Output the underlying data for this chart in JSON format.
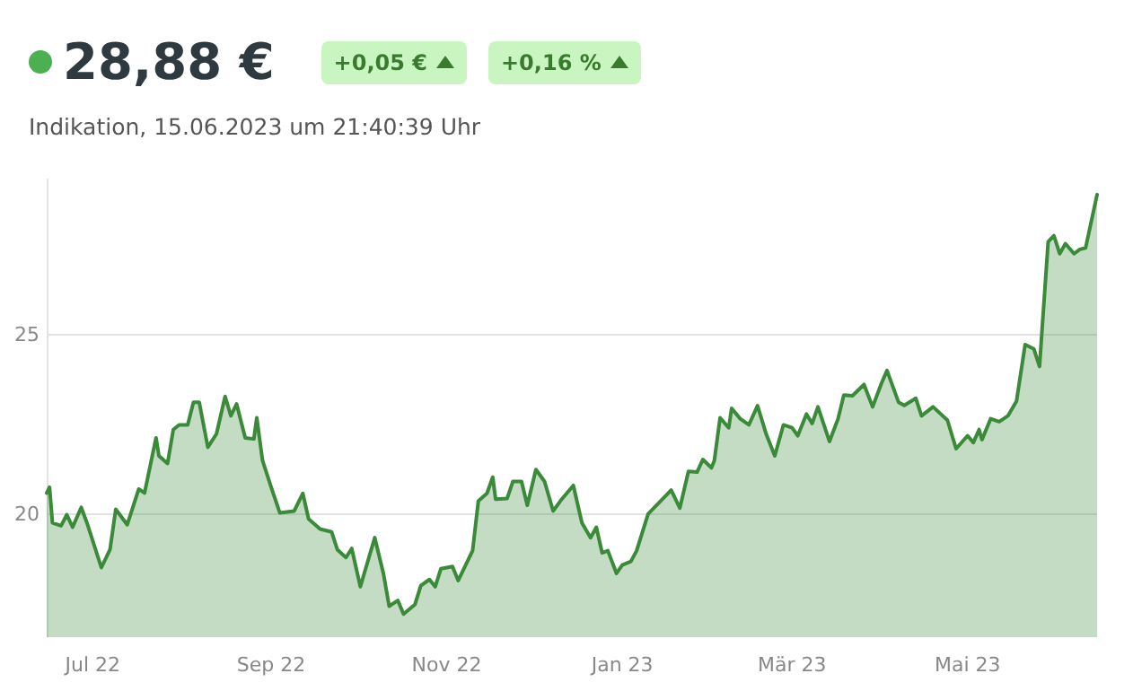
{
  "chart_data": {
    "type": "area",
    "title": "28,88 €",
    "subtitle": "Indikation, 15.06.2023 um 21:40:39 Uhr",
    "annotations": [
      "+0,05 €",
      "+0,16 %"
    ],
    "x": [
      "2022-06-15",
      "2022-06-16",
      "2022-06-17",
      "2022-06-20",
      "2022-06-22",
      "2022-06-24",
      "2022-06-27",
      "2022-06-29",
      "2022-07-04",
      "2022-07-07",
      "2022-07-09",
      "2022-07-13",
      "2022-07-17",
      "2022-07-19",
      "2022-07-23",
      "2022-07-24",
      "2022-07-27",
      "2022-07-29",
      "2022-07-31",
      "2022-08-03",
      "2022-08-05",
      "2022-08-07",
      "2022-08-10",
      "2022-08-13",
      "2022-08-16",
      "2022-08-18",
      "2022-08-20",
      "2022-08-23",
      "2022-08-26",
      "2022-08-27",
      "2022-08-29",
      "2022-09-01",
      "2022-09-04",
      "2022-09-09",
      "2022-09-12",
      "2022-09-14",
      "2022-09-18",
      "2022-09-22",
      "2022-09-24",
      "2022-09-27",
      "2022-09-29",
      "2022-10-02",
      "2022-10-07",
      "2022-10-10",
      "2022-10-12",
      "2022-10-15",
      "2022-10-17",
      "2022-10-21",
      "2022-10-23",
      "2022-10-26",
      "2022-10-28",
      "2022-10-30",
      "2022-11-03",
      "2022-11-05",
      "2022-11-10",
      "2022-11-12",
      "2022-11-15",
      "2022-11-17",
      "2022-11-18",
      "2022-11-22",
      "2022-11-24",
      "2022-11-27",
      "2022-11-29",
      "2022-12-02",
      "2022-12-05",
      "2022-12-08",
      "2022-12-11",
      "2022-12-15",
      "2022-12-18",
      "2022-12-21",
      "2022-12-23",
      "2022-12-25",
      "2022-12-27",
      "2022-12-30",
      "2023-01-01",
      "2023-01-04",
      "2023-01-06",
      "2023-01-10",
      "2023-01-15",
      "2023-01-18",
      "2023-01-21",
      "2023-01-24",
      "2023-01-27",
      "2023-01-29",
      "2023-02-01",
      "2023-02-02",
      "2023-02-04",
      "2023-02-07",
      "2023-02-08",
      "2023-02-11",
      "2023-02-14",
      "2023-02-17",
      "2023-02-20",
      "2023-02-23",
      "2023-02-26",
      "2023-03-01",
      "2023-03-03",
      "2023-03-06",
      "2023-03-08",
      "2023-03-10",
      "2023-03-14",
      "2023-03-17",
      "2023-03-19",
      "2023-03-22",
      "2023-03-26",
      "2023-03-29",
      "2023-04-01",
      "2023-04-03",
      "2023-04-07",
      "2023-04-09",
      "2023-04-13",
      "2023-04-15",
      "2023-04-19",
      "2023-04-24",
      "2023-04-27",
      "2023-05-01",
      "2023-05-03",
      "2023-05-05",
      "2023-05-06",
      "2023-05-09",
      "2023-05-12",
      "2023-05-15",
      "2023-05-18",
      "2023-05-21",
      "2023-05-24",
      "2023-05-26",
      "2023-05-29",
      "2023-05-31",
      "2023-06-02",
      "2023-06-04",
      "2023-06-07",
      "2023-06-09",
      "2023-06-11",
      "2023-06-15"
    ],
    "series": [
      {
        "color": "#3a8a3a",
        "values": [
          20.6,
          20.76,
          19.77,
          19.69,
          20.0,
          19.65,
          20.2,
          19.77,
          18.53,
          19.03,
          20.15,
          19.72,
          20.71,
          20.6,
          22.13,
          21.63,
          21.42,
          22.36,
          22.49,
          22.49,
          23.12,
          23.12,
          21.87,
          22.24,
          23.28,
          22.74,
          23.07,
          22.13,
          22.1,
          22.69,
          21.5,
          20.76,
          20.05,
          20.1,
          20.59,
          19.88,
          19.6,
          19.52,
          19.03,
          18.81,
          19.06,
          18.0,
          19.36,
          18.37,
          17.46,
          17.62,
          17.24,
          17.51,
          18.03,
          18.2,
          18.0,
          18.5,
          18.56,
          18.17,
          19.0,
          20.38,
          20.59,
          21.04,
          20.43,
          20.45,
          20.92,
          20.92,
          20.26,
          21.25,
          20.92,
          20.1,
          20.43,
          20.81,
          19.77,
          19.36,
          19.65,
          18.94,
          19.0,
          18.37,
          18.6,
          18.7,
          19.0,
          20.02,
          20.43,
          20.68,
          20.18,
          21.2,
          21.18,
          21.53,
          21.3,
          21.5,
          22.69,
          22.41,
          22.95,
          22.66,
          22.49,
          23.02,
          22.24,
          21.63,
          22.49,
          22.41,
          22.19,
          22.79,
          22.53,
          22.99,
          22.03,
          22.66,
          23.32,
          23.3,
          23.61,
          22.99,
          23.63,
          24.0,
          23.12,
          23.03,
          23.23,
          22.74,
          22.99,
          22.62,
          21.83,
          22.19,
          22.0,
          22.36,
          22.08,
          22.66,
          22.58,
          22.74,
          23.15,
          24.72,
          24.6,
          24.11,
          27.57,
          27.74,
          27.24,
          27.52,
          27.24,
          27.36,
          27.4,
          28.88
        ]
      }
    ],
    "xlim": [
      "2022-06-15",
      "2023-06-15"
    ],
    "xticks": [
      {
        "value": "2022-07-01",
        "label": "Jul 22"
      },
      {
        "value": "2022-09-01",
        "label": "Sep 22"
      },
      {
        "value": "2022-11-01",
        "label": "Nov 22"
      },
      {
        "value": "2023-01-01",
        "label": "Jan 23"
      },
      {
        "value": "2023-03-01",
        "label": "Mär 23"
      },
      {
        "value": "2023-05-01",
        "label": "Mai 23"
      }
    ],
    "ylim": [
      16.6,
      29.3
    ],
    "yticks": [
      20,
      25
    ],
    "grid": "y",
    "marker": "none",
    "line_style": "solid"
  }
}
